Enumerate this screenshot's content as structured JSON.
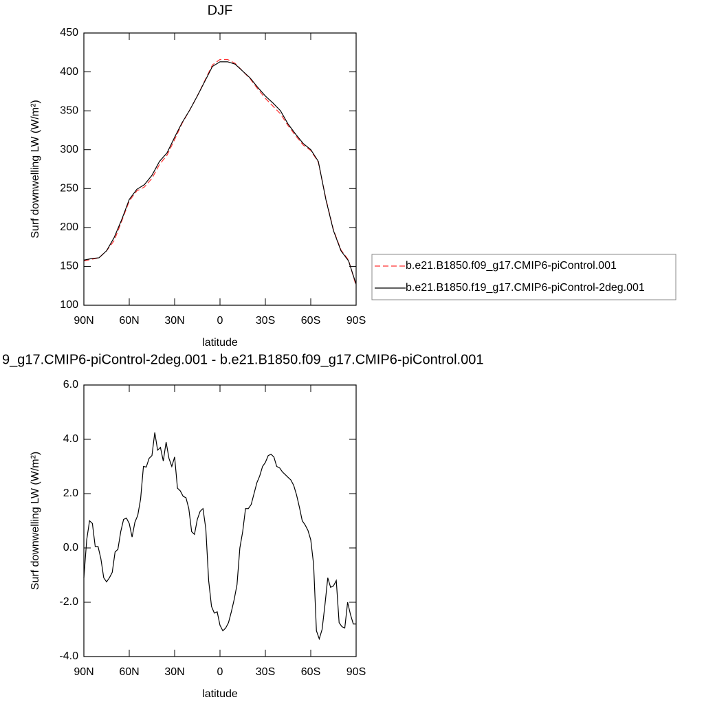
{
  "chart_data": [
    {
      "type": "line",
      "title": "DJF",
      "xlabel": "latitude",
      "ylabel": "Surf downwelling LW (W/m²)",
      "x": [
        90,
        85,
        80,
        75,
        70,
        65,
        60,
        55,
        50,
        45,
        40,
        35,
        30,
        25,
        20,
        15,
        10,
        5,
        0,
        -5,
        -10,
        -15,
        -20,
        -25,
        -30,
        -35,
        -40,
        -45,
        -50,
        -55,
        -60,
        -65,
        -70,
        -75,
        -80,
        -85,
        -90
      ],
      "series": [
        {
          "name": "b.e21.B1850.f09_g17.CMIP6-piControl.001",
          "color": "#ff3030",
          "linestyle": "dashed",
          "values": [
            157,
            159,
            161,
            170,
            183,
            208,
            234,
            247,
            252,
            263,
            281,
            293,
            313,
            334,
            351,
            369,
            389,
            409,
            416,
            416,
            411,
            401,
            391,
            378,
            366,
            356,
            346,
            331,
            318,
            306,
            299,
            284,
            237,
            197,
            171,
            158,
            125
          ]
        },
        {
          "name": "b.e21.B1850.f19_g17.CMIP6-piControl-2deg.001",
          "color": "#000000",
          "linestyle": "solid",
          "values": [
            158,
            160,
            161,
            170,
            187,
            210,
            236,
            249,
            255,
            267,
            285,
            296,
            316,
            335,
            351,
            369,
            388,
            407,
            413,
            413,
            410,
            401,
            392,
            380,
            369,
            360,
            350,
            333,
            320,
            308,
            300,
            285,
            236,
            196,
            170,
            157,
            127
          ]
        }
      ],
      "xlim": [
        90,
        -90
      ],
      "ylim": [
        100,
        450
      ],
      "xticks": [
        {
          "value": 90,
          "label": "90N"
        },
        {
          "value": 60,
          "label": "60N"
        },
        {
          "value": 30,
          "label": "30N"
        },
        0,
        {
          "value": -30,
          "label": "30S"
        },
        {
          "value": -60,
          "label": "60S"
        },
        {
          "value": -90,
          "label": "90S"
        }
      ],
      "yticks": [
        100,
        150,
        200,
        250,
        300,
        350,
        400,
        450
      ]
    },
    {
      "type": "line",
      "title": "9_g17.CMIP6-piControl-2deg.001 - b.e21.B1850.f09_g17.CMIP6-piControl.001",
      "xlabel": "latitude",
      "ylabel": "Surf downwelling LW (W/m²)",
      "x": [
        90,
        88.125,
        86.25,
        84.375,
        82.5,
        80.625,
        78.75,
        76.875,
        75,
        73.125,
        71.25,
        69.375,
        67.5,
        65.625,
        63.75,
        61.875,
        60,
        58.125,
        56.25,
        54.375,
        52.5,
        50.625,
        48.75,
        46.875,
        45,
        43.125,
        41.25,
        39.375,
        37.5,
        35.625,
        33.75,
        31.875,
        30,
        28.125,
        26.25,
        24.375,
        22.5,
        20.625,
        18.75,
        16.875,
        15,
        13.125,
        11.25,
        9.375,
        7.5,
        5.625,
        3.75,
        1.875,
        0,
        -1.875,
        -3.75,
        -5.625,
        -7.5,
        -9.375,
        -11.25,
        -13.125,
        -15,
        -16.875,
        -18.75,
        -20.625,
        -22.5,
        -24.375,
        -26.25,
        -28.125,
        -30,
        -31.875,
        -33.75,
        -35.625,
        -37.5,
        -39.375,
        -41.25,
        -43.125,
        -45,
        -46.875,
        -48.75,
        -50.625,
        -52.5,
        -54.375,
        -56.25,
        -58.125,
        -60,
        -61.875,
        -63.75,
        -65.625,
        -67.5,
        -69.375,
        -71.25,
        -73.125,
        -75,
        -76.875,
        -78.75,
        -80.625,
        -82.5,
        -84.375,
        -86.25,
        -88.125,
        -90
      ],
      "series": [
        {
          "color": "#000000",
          "linestyle": "solid",
          "values": [
            -1.1,
            0.3,
            1.0,
            0.9,
            0.05,
            0.05,
            -0.4,
            -1.1,
            -1.25,
            -1.1,
            -0.9,
            -0.15,
            -0.05,
            0.6,
            1.05,
            1.1,
            0.9,
            0.4,
            0.95,
            1.2,
            1.8,
            3.0,
            2.98,
            3.3,
            3.4,
            4.25,
            3.6,
            3.7,
            3.2,
            3.9,
            3.3,
            3.0,
            3.35,
            2.2,
            2.1,
            1.9,
            1.85,
            1.45,
            0.6,
            0.5,
            1.05,
            1.35,
            1.45,
            0.7,
            -1.2,
            -2.15,
            -2.4,
            -2.35,
            -2.85,
            -3.05,
            -2.95,
            -2.75,
            -2.35,
            -1.9,
            -1.35,
            0.0,
            0.6,
            1.45,
            1.45,
            1.6,
            2.0,
            2.4,
            2.65,
            3.0,
            3.15,
            3.4,
            3.45,
            3.35,
            3.0,
            2.95,
            2.8,
            2.7,
            2.6,
            2.5,
            2.3,
            1.95,
            1.5,
            1.0,
            0.85,
            0.65,
            0.3,
            -0.6,
            -3.05,
            -3.35,
            -3.0,
            -2.1,
            -1.1,
            -1.45,
            -1.4,
            -1.2,
            -2.75,
            -2.9,
            -2.95,
            -2.0,
            -2.45,
            -2.8,
            -2.8
          ]
        }
      ],
      "xlim": [
        90,
        -90
      ],
      "ylim": [
        -4,
        6
      ],
      "xticks": [
        {
          "value": 90,
          "label": "90N"
        },
        {
          "value": 60,
          "label": "60N"
        },
        {
          "value": 30,
          "label": "30N"
        },
        0,
        {
          "value": -30,
          "label": "30S"
        },
        {
          "value": -60,
          "label": "60S"
        },
        {
          "value": -90,
          "label": "90S"
        }
      ],
      "yticks": [
        {
          "value": -4,
          "label": "-4.0"
        },
        {
          "value": -2,
          "label": "-2.0"
        },
        {
          "value": 0,
          "label": "0.0"
        },
        {
          "value": 2,
          "label": "2.0"
        },
        {
          "value": 4,
          "label": "4.0"
        },
        {
          "value": 6,
          "label": "6.0"
        }
      ]
    }
  ]
}
